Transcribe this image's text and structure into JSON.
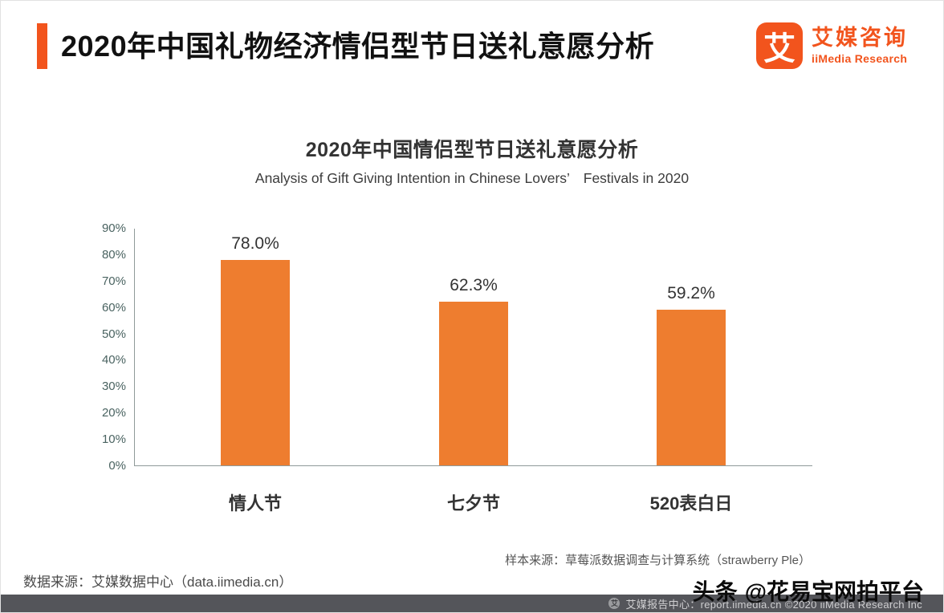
{
  "page": {
    "accent_color": "#f2541d",
    "background": "#ffffff"
  },
  "header": {
    "title": "2020年中国礼物经济情侣型节日送礼意愿分析"
  },
  "logo": {
    "mark": "艾",
    "name_cn": "艾媒咨询",
    "name_en": "iiMedia Research",
    "brand_color": "#f2541d"
  },
  "chart_data": {
    "type": "bar",
    "title": "2020年中国情侣型节日送礼意愿分析",
    "subtitle": "Analysis of Gift Giving Intention in Chinese Lovers’　Festivals in 2020",
    "categories": [
      "情人节",
      "七夕节",
      "520表白日"
    ],
    "values": [
      78.0,
      62.3,
      59.2
    ],
    "value_labels": [
      "78.0%",
      "62.3%",
      "59.2%"
    ],
    "ylim": [
      0,
      90
    ],
    "ytick_labels": [
      "0%",
      "10%",
      "20%",
      "30%",
      "40%",
      "50%",
      "60%",
      "70%",
      "80%",
      "90%"
    ],
    "bar_color": "#ee7d2f",
    "grid": false,
    "legend_position": "none"
  },
  "notes": {
    "sample_source": "样本来源：草莓派数据调查与计算系统（strawberry Ple）",
    "data_source": "数据来源：艾媒数据中心（data.iimedia.cn）"
  },
  "footer": {
    "logo_glyph": "艾",
    "text": "艾媒报告中心：report.iimedia.cn  ©2020  iiMedia Research Inc"
  },
  "watermark": {
    "brand": "头条",
    "handle": "@花易宝网拍平台"
  }
}
